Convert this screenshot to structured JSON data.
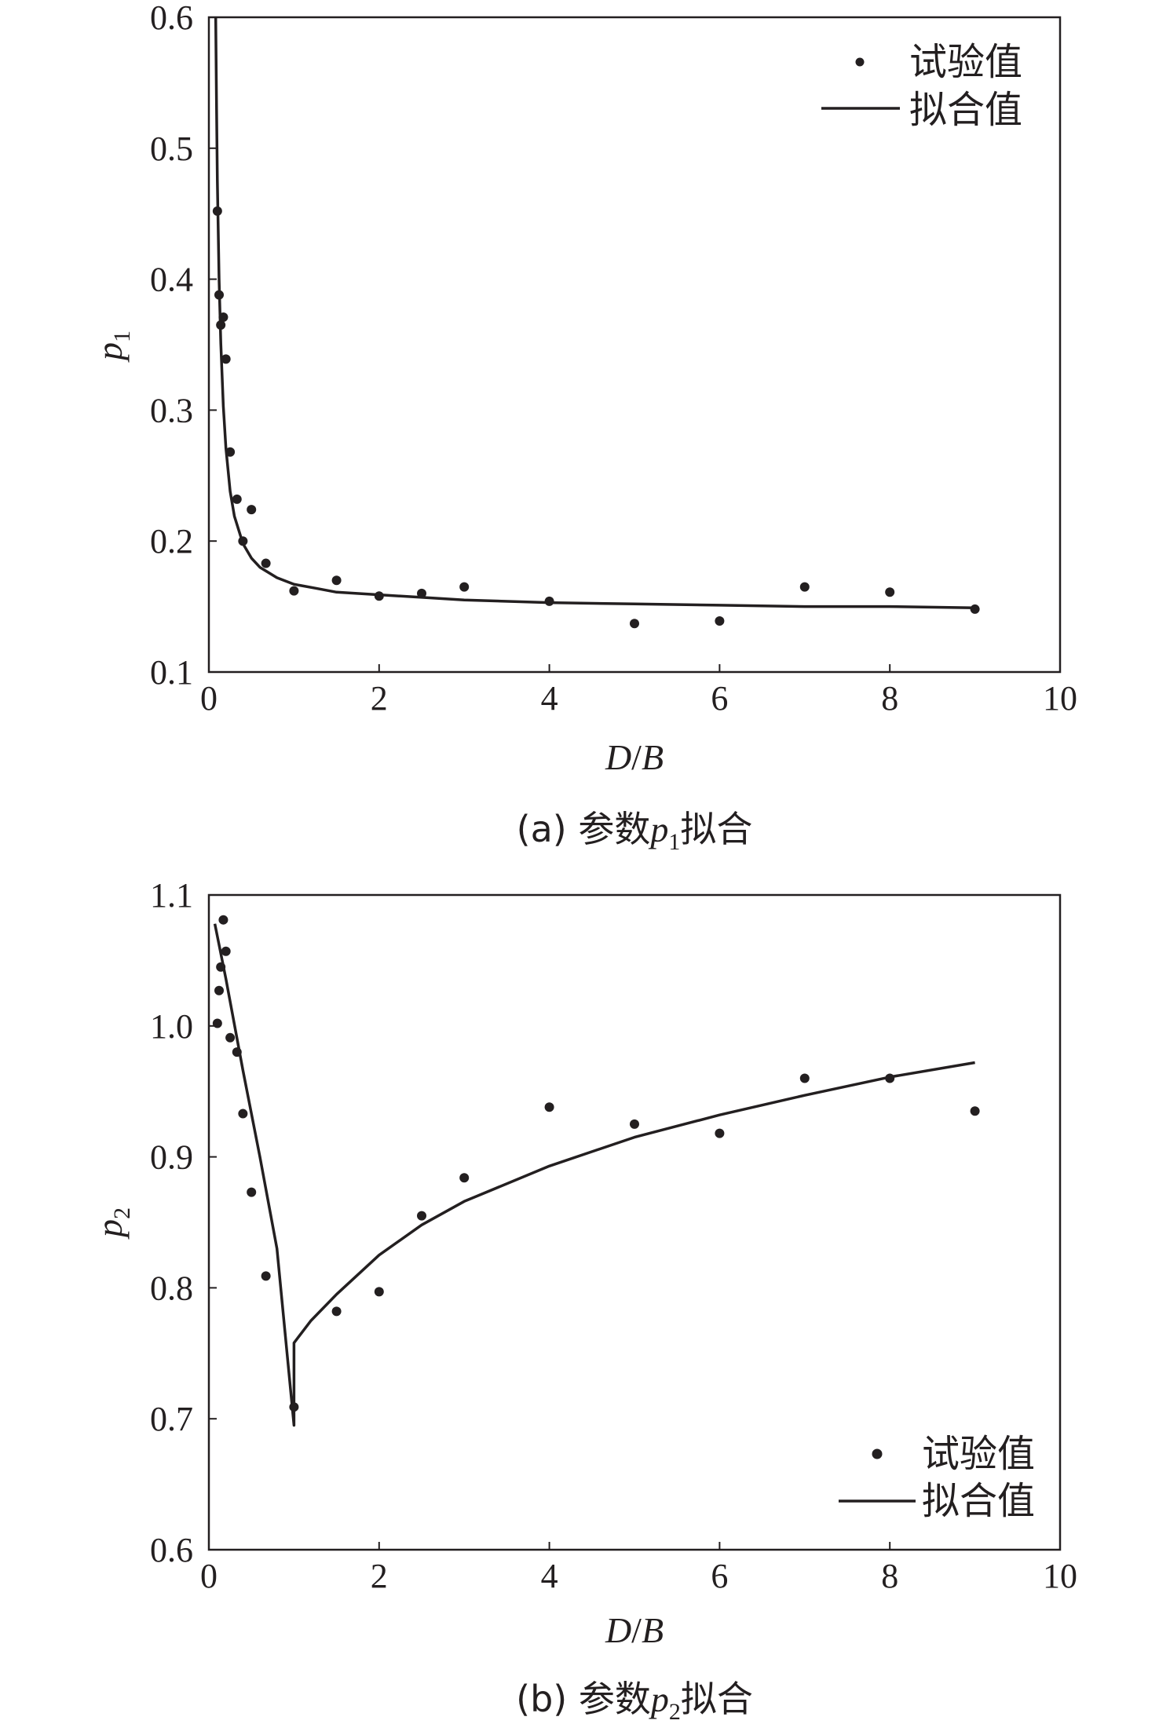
{
  "chart_data": [
    {
      "type": "scatter",
      "caption": {
        "prefix": "(a) 参数",
        "var": "p",
        "sub": "1",
        "suffix": "拟合"
      },
      "xlabel": {
        "a": "D",
        "sep": "/",
        "b": "B"
      },
      "ylabel": {
        "var": "p",
        "sub": "1"
      },
      "xlim": [
        0,
        10
      ],
      "ylim": [
        0.1,
        0.6
      ],
      "xticks": [
        "0",
        "2",
        "4",
        "6",
        "8",
        "10"
      ],
      "yticks": [
        "0.1",
        "0.2",
        "0.3",
        "0.4",
        "0.5",
        "0.6"
      ],
      "legend": {
        "position": "top-right",
        "points_label": "试验值",
        "line_label": "拟合值"
      },
      "series": [
        {
          "name": "试验值",
          "kind": "points",
          "x": [
            0.1,
            0.12,
            0.14,
            0.17,
            0.2,
            0.25,
            0.33,
            0.4,
            0.5,
            0.67,
            1.0,
            1.5,
            2.0,
            2.5,
            3.0,
            4.0,
            5.0,
            6.0,
            7.0,
            8.0,
            9.0
          ],
          "y": [
            0.452,
            0.388,
            0.365,
            0.371,
            0.339,
            0.268,
            0.232,
            0.2,
            0.224,
            0.183,
            0.162,
            0.17,
            0.158,
            0.16,
            0.165,
            0.154,
            0.137,
            0.139,
            0.165,
            0.161,
            0.148
          ]
        },
        {
          "name": "拟合值",
          "kind": "line",
          "x": [
            0.08,
            0.09,
            0.1,
            0.12,
            0.14,
            0.17,
            0.2,
            0.25,
            0.3,
            0.4,
            0.5,
            0.6,
            0.8,
            1.0,
            1.25,
            1.5,
            2.0,
            2.5,
            3.0,
            4.0,
            5.0,
            6.0,
            7.0,
            8.0,
            9.0
          ],
          "y": [
            0.6,
            0.53,
            0.475,
            0.4,
            0.351,
            0.303,
            0.271,
            0.238,
            0.219,
            0.198,
            0.187,
            0.18,
            0.172,
            0.167,
            0.164,
            0.161,
            0.159,
            0.157,
            0.155,
            0.153,
            0.152,
            0.151,
            0.15,
            0.15,
            0.149
          ]
        }
      ]
    },
    {
      "type": "scatter",
      "caption": {
        "prefix": "(b) 参数",
        "var": "p",
        "sub": "2",
        "suffix": "拟合"
      },
      "xlabel": {
        "a": "D",
        "sep": "/",
        "b": "B"
      },
      "ylabel": {
        "var": "p",
        "sub": "2"
      },
      "xlim": [
        0,
        10
      ],
      "ylim": [
        0.6,
        1.1
      ],
      "xticks": [
        "0",
        "2",
        "4",
        "6",
        "8",
        "10"
      ],
      "yticks": [
        "0.6",
        "0.7",
        "0.8",
        "0.9",
        "1.0",
        "1.1"
      ],
      "legend": {
        "position": "bottom-right",
        "points_label": "试验值",
        "line_label": "拟合值"
      },
      "series": [
        {
          "name": "试验值",
          "kind": "points",
          "x": [
            0.1,
            0.12,
            0.14,
            0.17,
            0.2,
            0.25,
            0.33,
            0.4,
            0.5,
            0.67,
            1.0,
            1.5,
            2.0,
            2.5,
            3.0,
            4.0,
            5.0,
            6.0,
            7.0,
            8.0,
            9.0
          ],
          "y": [
            1.002,
            1.027,
            1.045,
            1.081,
            1.057,
            0.991,
            0.98,
            0.933,
            0.873,
            0.809,
            0.709,
            0.782,
            0.797,
            0.855,
            0.884,
            0.938,
            0.925,
            0.918,
            0.96,
            0.96,
            0.935
          ]
        },
        {
          "name": "拟合值",
          "kind": "line",
          "x": [
            0.07,
            0.2,
            0.4,
            0.6,
            0.8,
            1.0,
            1.0,
            1.2,
            1.5,
            2.0,
            2.5,
            3.0,
            4.0,
            5.0,
            6.0,
            7.0,
            8.0,
            9.0
          ],
          "y": [
            1.078,
            1.036,
            0.966,
            0.9,
            0.83,
            0.695,
            0.758,
            0.775,
            0.795,
            0.825,
            0.848,
            0.866,
            0.893,
            0.915,
            0.932,
            0.947,
            0.961,
            0.972
          ]
        }
      ]
    }
  ]
}
